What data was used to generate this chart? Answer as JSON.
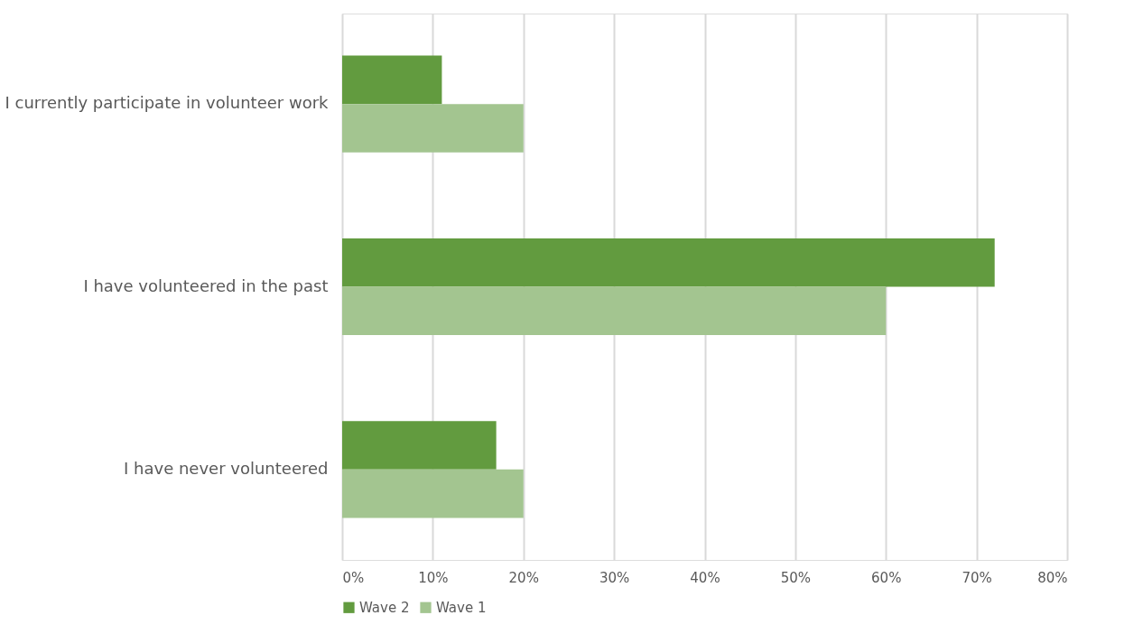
{
  "chart_data": {
    "type": "bar",
    "orientation": "horizontal",
    "categories": [
      "I currently participate in volunteer work",
      "I have volunteered in the past",
      "I have never volunteered"
    ],
    "series": [
      {
        "name": "Wave 2",
        "color": "#629b3f",
        "values": [
          11,
          72,
          17
        ]
      },
      {
        "name": "Wave 1",
        "color": "#a3c590",
        "values": [
          20,
          60,
          20
        ]
      }
    ],
    "xlim": [
      0,
      80
    ],
    "xticks": [
      {
        "value": 0,
        "label": "0%"
      },
      {
        "value": 10,
        "label": "10%"
      },
      {
        "value": 20,
        "label": "20%"
      },
      {
        "value": 30,
        "label": "30%"
      },
      {
        "value": 40,
        "label": "40%"
      },
      {
        "value": 50,
        "label": "50%"
      },
      {
        "value": 60,
        "label": "60%"
      },
      {
        "value": 70,
        "label": "70%"
      },
      {
        "value": 80,
        "label": "80%"
      }
    ],
    "grid": "x",
    "legend": "bottom"
  }
}
